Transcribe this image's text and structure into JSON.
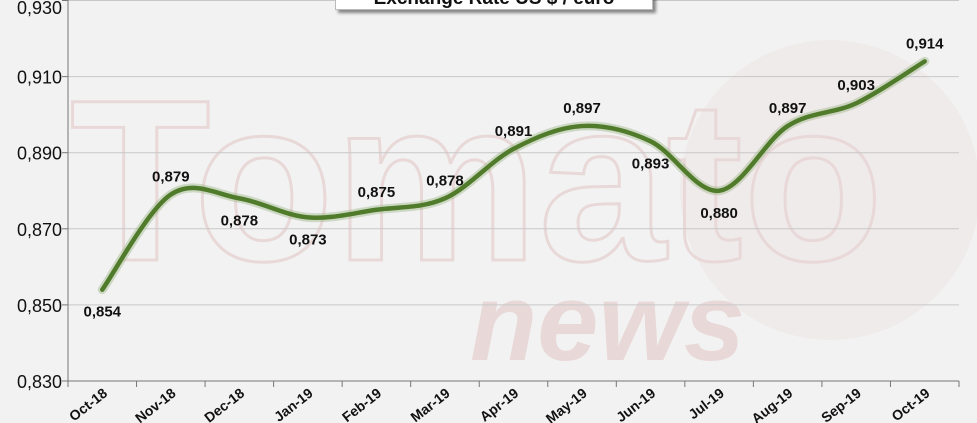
{
  "chart_data": {
    "type": "line",
    "title": "Exchange Rate US $ / euro",
    "categories": [
      "Oct-18",
      "Nov-18",
      "Dec-18",
      "Jan-19",
      "Feb-19",
      "Mar-19",
      "Apr-19",
      "May-19",
      "Jun-19",
      "Jul-19",
      "Aug-19",
      "Sep-19",
      "Oct-19"
    ],
    "values": [
      0.854,
      0.879,
      0.878,
      0.873,
      0.875,
      0.878,
      0.891,
      0.897,
      0.893,
      0.88,
      0.897,
      0.903,
      0.914
    ],
    "data_labels": [
      "0,854",
      "0,879",
      "0,878",
      "0,873",
      "0,875",
      "0,878",
      "0,891",
      "0,897",
      "0,893",
      "0,880",
      "0,897",
      "0,903",
      "0,914"
    ],
    "y_ticks": [
      "0,830",
      "0,850",
      "0,870",
      "0,890",
      "0,910",
      "0,930"
    ],
    "ylim": [
      0.83,
      0.93
    ],
    "grid": true,
    "smooth": true,
    "line_color": "#4f7b2b",
    "watermark": "Tomato news"
  }
}
